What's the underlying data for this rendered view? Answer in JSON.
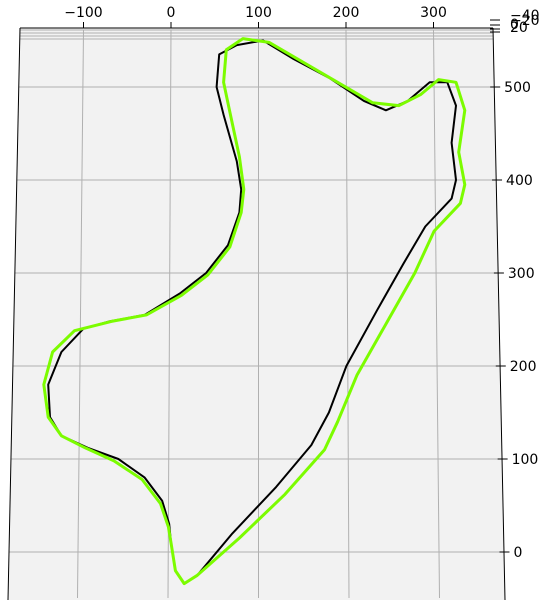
{
  "chart_data": {
    "type": "line",
    "projection": "3d",
    "title": "",
    "xlabel": "",
    "ylabel": "",
    "zlabel": "",
    "grid": true,
    "x_ticks": [
      -100,
      0,
      100,
      200,
      300
    ],
    "y_ticks": [
      0,
      100,
      200,
      300,
      400,
      500
    ],
    "z_ticks": [
      -40,
      -20,
      0,
      20
    ],
    "z_tick_labels": [
      "−40",
      "−20",
      "0",
      "20"
    ],
    "x_tick_labels": [
      "−100",
      "0",
      "100",
      "200",
      "300"
    ],
    "y_tick_labels": [
      "0",
      "100",
      "200",
      "300",
      "400",
      "500"
    ],
    "xlim": [
      -170,
      355
    ],
    "ylim": [
      -50,
      570
    ],
    "series": [
      {
        "color": "#000000",
        "points": [
          [
            0,
            10
          ],
          [
            5,
            -20
          ],
          [
            15,
            -34
          ],
          [
            30,
            -25
          ],
          [
            70,
            20
          ],
          [
            120,
            70
          ],
          [
            160,
            115
          ],
          [
            180,
            150
          ],
          [
            200,
            200
          ],
          [
            235,
            260
          ],
          [
            265,
            310
          ],
          [
            290,
            350
          ],
          [
            320,
            380
          ],
          [
            325,
            400
          ],
          [
            320,
            440
          ],
          [
            325,
            480
          ],
          [
            315,
            505
          ],
          [
            295,
            505
          ],
          [
            270,
            485
          ],
          [
            245,
            475
          ],
          [
            220,
            485
          ],
          [
            180,
            510
          ],
          [
            140,
            530
          ],
          [
            105,
            550
          ],
          [
            75,
            545
          ],
          [
            55,
            535
          ],
          [
            52,
            500
          ],
          [
            60,
            470
          ],
          [
            75,
            420
          ],
          [
            80,
            390
          ],
          [
            78,
            365
          ],
          [
            65,
            330
          ],
          [
            40,
            300
          ],
          [
            10,
            278
          ],
          [
            -30,
            255
          ],
          [
            -70,
            248
          ],
          [
            -100,
            240
          ],
          [
            -125,
            215
          ],
          [
            -140,
            180
          ],
          [
            -138,
            145
          ],
          [
            -125,
            125
          ],
          [
            -95,
            112
          ],
          [
            -60,
            100
          ],
          [
            -30,
            80
          ],
          [
            -10,
            55
          ],
          [
            -2,
            30
          ],
          [
            0,
            10
          ]
        ]
      },
      {
        "color": "#7cfc00",
        "points": [
          [
            0,
            10
          ],
          [
            5,
            -20
          ],
          [
            15,
            -34
          ],
          [
            30,
            -25
          ],
          [
            78,
            15
          ],
          [
            130,
            62
          ],
          [
            175,
            110
          ],
          [
            190,
            140
          ],
          [
            212,
            190
          ],
          [
            248,
            250
          ],
          [
            278,
            300
          ],
          [
            300,
            345
          ],
          [
            330,
            375
          ],
          [
            335,
            395
          ],
          [
            328,
            430
          ],
          [
            335,
            475
          ],
          [
            325,
            505
          ],
          [
            305,
            508
          ],
          [
            285,
            492
          ],
          [
            260,
            480
          ],
          [
            230,
            483
          ],
          [
            190,
            505
          ],
          [
            150,
            527
          ],
          [
            112,
            548
          ],
          [
            82,
            552
          ],
          [
            63,
            540
          ],
          [
            60,
            505
          ],
          [
            66,
            478
          ],
          [
            78,
            425
          ],
          [
            83,
            390
          ],
          [
            80,
            365
          ],
          [
            67,
            328
          ],
          [
            42,
            298
          ],
          [
            12,
            276
          ],
          [
            -28,
            255
          ],
          [
            -68,
            248
          ],
          [
            -110,
            238
          ],
          [
            -135,
            215
          ],
          [
            -145,
            180
          ],
          [
            -140,
            145
          ],
          [
            -125,
            125
          ],
          [
            -98,
            112
          ],
          [
            -65,
            98
          ],
          [
            -33,
            78
          ],
          [
            -12,
            52
          ],
          [
            -3,
            27
          ],
          [
            0,
            10
          ]
        ]
      }
    ]
  }
}
